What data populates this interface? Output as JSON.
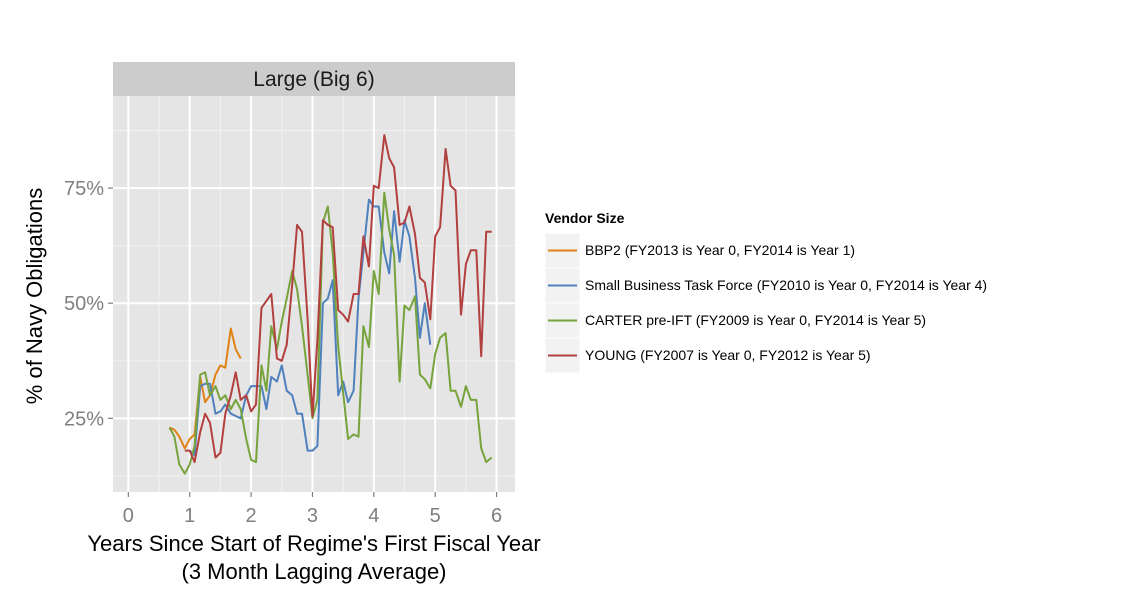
{
  "chart_data": {
    "type": "line",
    "facet_title": "Large (Big 6)",
    "xlabel": "Years Since Start of Regime's First Fiscal Year",
    "xlabel_sub": "(3 Month Lagging Average)",
    "ylabel": "% of Navy Obligations",
    "xlim": [
      -0.25,
      6.3
    ],
    "ylim": [
      0.09,
      0.95
    ],
    "x_ticks": [
      0,
      1,
      2,
      3,
      4,
      5,
      6
    ],
    "x_tick_labels": [
      "0",
      "1",
      "2",
      "3",
      "4",
      "5",
      "6"
    ],
    "y_ticks": [
      0.25,
      0.5,
      0.75
    ],
    "y_tick_labels": [
      "25%",
      "50%",
      "75%"
    ],
    "grid": true,
    "legend_title": "Vendor Size",
    "legend_position": "right",
    "series": [
      {
        "name": "BBP2 (FY2013 is Year 0, FY2014 is Year 1)",
        "color": "#E08214",
        "x": [
          0.67,
          0.75,
          0.83,
          0.92,
          1.0,
          1.08,
          1.17,
          1.25,
          1.33,
          1.42,
          1.5,
          1.58,
          1.67,
          1.75,
          1.83
        ],
        "y": [
          0.23,
          0.225,
          0.21,
          0.185,
          0.205,
          0.215,
          0.34,
          0.285,
          0.3,
          0.345,
          0.365,
          0.36,
          0.445,
          0.4,
          0.38
        ]
      },
      {
        "name": "Small Business Task Force (FY2010 is Year 0, FY2014 is Year 4)",
        "color": "#4F81BD",
        "x": [
          1.0,
          1.08,
          1.17,
          1.25,
          1.33,
          1.42,
          1.5,
          1.58,
          1.67,
          1.75,
          1.83,
          1.92,
          2.0,
          2.08,
          2.17,
          2.25,
          2.33,
          2.42,
          2.5,
          2.58,
          2.67,
          2.75,
          2.83,
          2.92,
          3.0,
          3.08,
          3.17,
          3.25,
          3.33,
          3.42,
          3.5,
          3.58,
          3.67,
          3.75,
          3.83,
          3.92,
          4.0,
          4.08,
          4.17,
          4.25,
          4.33,
          4.42,
          4.5,
          4.58,
          4.67,
          4.75,
          4.83,
          4.92
        ],
        "y": [
          0.18,
          0.17,
          0.32,
          0.325,
          0.325,
          0.26,
          0.265,
          0.28,
          0.26,
          0.255,
          0.25,
          0.3,
          0.32,
          0.32,
          0.32,
          0.27,
          0.34,
          0.33,
          0.365,
          0.31,
          0.3,
          0.26,
          0.26,
          0.18,
          0.18,
          0.19,
          0.5,
          0.51,
          0.55,
          0.3,
          0.33,
          0.285,
          0.31,
          0.51,
          0.61,
          0.725,
          0.71,
          0.71,
          0.61,
          0.565,
          0.7,
          0.59,
          0.68,
          0.645,
          0.555,
          0.425,
          0.5,
          0.41
        ]
      },
      {
        "name": "CARTER pre-IFT (FY2009 is Year 0, FY2014 is Year 5)",
        "color": "#77A33D",
        "x": [
          0.67,
          0.75,
          0.83,
          0.92,
          1.0,
          1.08,
          1.17,
          1.25,
          1.33,
          1.42,
          1.5,
          1.58,
          1.67,
          1.75,
          1.83,
          1.92,
          2.0,
          2.08,
          2.17,
          2.25,
          2.33,
          2.42,
          2.5,
          2.58,
          2.67,
          2.75,
          2.83,
          2.92,
          3.0,
          3.08,
          3.17,
          3.25,
          3.33,
          3.42,
          3.5,
          3.58,
          3.67,
          3.75,
          3.83,
          3.92,
          4.0,
          4.08,
          4.17,
          4.25,
          4.33,
          4.42,
          4.5,
          4.58,
          4.67,
          4.75,
          4.83,
          4.92,
          5.0,
          5.08,
          5.17,
          5.25,
          5.33,
          5.42,
          5.5,
          5.58,
          5.67,
          5.75,
          5.83,
          5.92
        ],
        "y": [
          0.23,
          0.21,
          0.15,
          0.13,
          0.15,
          0.19,
          0.345,
          0.35,
          0.3,
          0.32,
          0.29,
          0.3,
          0.27,
          0.29,
          0.27,
          0.205,
          0.16,
          0.155,
          0.365,
          0.31,
          0.45,
          0.4,
          0.46,
          0.51,
          0.57,
          0.53,
          0.45,
          0.345,
          0.25,
          0.29,
          0.675,
          0.71,
          0.61,
          0.405,
          0.305,
          0.205,
          0.215,
          0.21,
          0.45,
          0.405,
          0.57,
          0.52,
          0.74,
          0.66,
          0.605,
          0.33,
          0.495,
          0.485,
          0.515,
          0.345,
          0.335,
          0.315,
          0.39,
          0.425,
          0.435,
          0.31,
          0.31,
          0.275,
          0.32,
          0.29,
          0.29,
          0.185,
          0.155,
          0.165
        ]
      },
      {
        "name": "YOUNG (FY2007 is Year 0, FY2012 is Year 5)",
        "color": "#B2403E",
        "x": [
          0.92,
          1.0,
          1.08,
          1.17,
          1.25,
          1.33,
          1.42,
          1.5,
          1.58,
          1.67,
          1.75,
          1.83,
          1.92,
          2.0,
          2.08,
          2.17,
          2.25,
          2.33,
          2.42,
          2.5,
          2.58,
          2.67,
          2.75,
          2.83,
          2.92,
          3.0,
          3.08,
          3.17,
          3.25,
          3.33,
          3.42,
          3.5,
          3.58,
          3.67,
          3.75,
          3.83,
          3.92,
          4.0,
          4.08,
          4.17,
          4.25,
          4.33,
          4.42,
          4.5,
          4.58,
          4.67,
          4.75,
          4.83,
          4.92,
          5.0,
          5.08,
          5.17,
          5.25,
          5.33,
          5.42,
          5.5,
          5.58,
          5.67,
          5.75,
          5.83,
          5.92
        ],
        "y": [
          0.18,
          0.18,
          0.155,
          0.22,
          0.26,
          0.24,
          0.165,
          0.175,
          0.26,
          0.3,
          0.35,
          0.29,
          0.3,
          0.265,
          0.28,
          0.49,
          0.505,
          0.52,
          0.38,
          0.375,
          0.41,
          0.54,
          0.67,
          0.655,
          0.465,
          0.255,
          0.42,
          0.68,
          0.67,
          0.665,
          0.485,
          0.475,
          0.46,
          0.52,
          0.52,
          0.645,
          0.58,
          0.755,
          0.75,
          0.865,
          0.815,
          0.795,
          0.67,
          0.675,
          0.71,
          0.65,
          0.555,
          0.545,
          0.465,
          0.645,
          0.665,
          0.835,
          0.755,
          0.745,
          0.475,
          0.585,
          0.615,
          0.615,
          0.385,
          0.655,
          0.655
        ]
      }
    ]
  }
}
